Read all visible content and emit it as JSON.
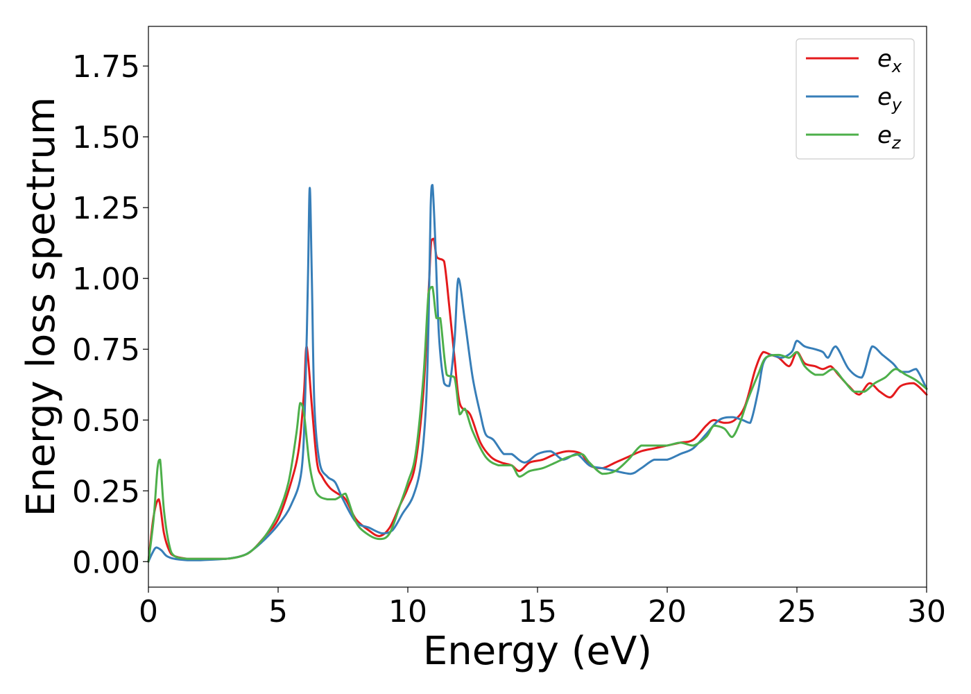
{
  "chart_data": {
    "type": "line",
    "title": "",
    "xlabel": "Energy (eV)",
    "ylabel": "Energy loss spectrum",
    "xlim": [
      0,
      30
    ],
    "ylim": [
      -0.09,
      1.89
    ],
    "xticks": [
      0,
      5,
      10,
      15,
      20,
      25,
      30
    ],
    "xtick_labels": [
      "0",
      "5",
      "10",
      "15",
      "20",
      "25",
      "30"
    ],
    "yticks": [
      0.0,
      0.25,
      0.5,
      0.75,
      1.0,
      1.25,
      1.5,
      1.75
    ],
    "ytick_labels": [
      "0.00",
      "0.25",
      "0.50",
      "0.75",
      "1.00",
      "1.25",
      "1.50",
      "1.75"
    ],
    "grid": false,
    "legend_position": "top-right",
    "series": [
      {
        "name": "e_x",
        "legend_base": "e",
        "legend_sub": "x",
        "color": "#e41a1c",
        "x": [
          0,
          0.2,
          0.4,
          0.6,
          0.8,
          1.0,
          1.5,
          2.0,
          3.0,
          3.6,
          4.0,
          4.5,
          5.0,
          5.5,
          5.8,
          6.0,
          6.1,
          6.3,
          6.5,
          6.7,
          7.0,
          7.3,
          7.6,
          8.0,
          8.5,
          8.9,
          9.3,
          9.7,
          10.0,
          10.3,
          10.6,
          10.8,
          10.9,
          11.0,
          11.1,
          11.2,
          11.4,
          11.6,
          11.8,
          12.0,
          12.4,
          12.8,
          13.2,
          13.6,
          14.0,
          14.3,
          14.7,
          15.2,
          15.7,
          16.2,
          16.7,
          17.0,
          17.5,
          18.0,
          18.5,
          19.0,
          19.5,
          20.0,
          20.5,
          21.0,
          21.5,
          21.8,
          22.2,
          22.6,
          23.0,
          23.4,
          23.7,
          24.0,
          24.3,
          24.7,
          25.0,
          25.3,
          25.7,
          26.0,
          26.3,
          26.6,
          27.0,
          27.4,
          27.8,
          28.2,
          28.6,
          29.0,
          29.5,
          30.0
        ],
        "y": [
          0.0,
          0.16,
          0.22,
          0.1,
          0.04,
          0.02,
          0.01,
          0.01,
          0.01,
          0.02,
          0.04,
          0.09,
          0.15,
          0.28,
          0.4,
          0.6,
          0.76,
          0.55,
          0.35,
          0.3,
          0.26,
          0.24,
          0.22,
          0.15,
          0.11,
          0.09,
          0.12,
          0.2,
          0.26,
          0.35,
          0.6,
          0.95,
          1.13,
          1.14,
          1.08,
          1.07,
          1.06,
          0.9,
          0.72,
          0.56,
          0.52,
          0.42,
          0.37,
          0.35,
          0.34,
          0.32,
          0.35,
          0.36,
          0.38,
          0.39,
          0.38,
          0.34,
          0.33,
          0.35,
          0.37,
          0.39,
          0.4,
          0.41,
          0.42,
          0.43,
          0.48,
          0.5,
          0.49,
          0.5,
          0.55,
          0.68,
          0.74,
          0.73,
          0.72,
          0.69,
          0.74,
          0.7,
          0.69,
          0.68,
          0.69,
          0.66,
          0.62,
          0.59,
          0.63,
          0.6,
          0.58,
          0.62,
          0.63,
          0.59
        ]
      },
      {
        "name": "e_y",
        "legend_base": "e",
        "legend_sub": "y",
        "color": "#377eb8",
        "x": [
          0,
          0.15,
          0.3,
          0.5,
          0.7,
          1.0,
          1.5,
          2.0,
          3.0,
          3.6,
          4.0,
          4.5,
          5.0,
          5.5,
          5.9,
          6.05,
          6.15,
          6.22,
          6.3,
          6.4,
          6.6,
          6.9,
          7.2,
          7.5,
          8.0,
          8.5,
          9.0,
          9.4,
          9.8,
          10.2,
          10.5,
          10.7,
          10.8,
          10.88,
          10.95,
          11.05,
          11.2,
          11.4,
          11.6,
          11.8,
          11.95,
          12.2,
          12.5,
          12.8,
          13.0,
          13.3,
          13.7,
          14.0,
          14.5,
          15.0,
          15.5,
          16.0,
          16.5,
          17.0,
          17.5,
          18.0,
          18.6,
          19.0,
          19.5,
          20.0,
          20.5,
          21.0,
          21.5,
          22.0,
          22.5,
          22.9,
          23.2,
          23.5,
          23.7,
          24.0,
          24.4,
          24.8,
          25.0,
          25.3,
          25.7,
          26.0,
          26.2,
          26.5,
          27.0,
          27.5,
          27.9,
          28.3,
          28.7,
          29.0,
          29.3,
          29.6,
          30.0
        ],
        "y": [
          0.0,
          0.03,
          0.05,
          0.04,
          0.02,
          0.01,
          0.005,
          0.005,
          0.01,
          0.02,
          0.04,
          0.08,
          0.13,
          0.2,
          0.32,
          0.6,
          1.0,
          1.32,
          1.0,
          0.55,
          0.35,
          0.3,
          0.28,
          0.22,
          0.14,
          0.12,
          0.1,
          0.11,
          0.17,
          0.23,
          0.34,
          0.55,
          0.85,
          1.25,
          1.33,
          1.15,
          0.8,
          0.63,
          0.62,
          0.78,
          1.0,
          0.85,
          0.65,
          0.52,
          0.45,
          0.43,
          0.38,
          0.38,
          0.35,
          0.38,
          0.39,
          0.36,
          0.38,
          0.34,
          0.33,
          0.32,
          0.31,
          0.33,
          0.36,
          0.36,
          0.38,
          0.4,
          0.45,
          0.5,
          0.51,
          0.5,
          0.49,
          0.6,
          0.7,
          0.73,
          0.72,
          0.74,
          0.78,
          0.76,
          0.75,
          0.74,
          0.72,
          0.76,
          0.68,
          0.65,
          0.76,
          0.73,
          0.7,
          0.67,
          0.67,
          0.68,
          0.61
        ]
      },
      {
        "name": "e_z",
        "legend_base": "e",
        "legend_sub": "z",
        "color": "#4daf4a",
        "x": [
          0,
          0.2,
          0.35,
          0.45,
          0.6,
          0.8,
          1.0,
          1.5,
          2.0,
          3.0,
          3.6,
          4.0,
          4.5,
          5.0,
          5.4,
          5.7,
          5.85,
          6.0,
          6.2,
          6.4,
          6.6,
          6.9,
          7.2,
          7.4,
          7.6,
          8.0,
          8.4,
          8.9,
          9.3,
          9.7,
          10.0,
          10.3,
          10.6,
          10.8,
          10.95,
          11.1,
          11.25,
          11.5,
          11.8,
          12.0,
          12.2,
          12.5,
          13.0,
          13.5,
          14.0,
          14.3,
          14.7,
          15.2,
          15.7,
          16.2,
          16.7,
          17.0,
          17.5,
          18.0,
          18.5,
          19.0,
          19.5,
          20.0,
          20.5,
          21.0,
          21.5,
          21.8,
          22.2,
          22.5,
          22.8,
          23.1,
          23.5,
          23.8,
          24.3,
          24.7,
          25.0,
          25.3,
          25.7,
          26.0,
          26.4,
          26.8,
          27.2,
          27.6,
          28.0,
          28.4,
          28.8,
          29.2,
          29.6,
          30.0
        ],
        "y": [
          0.0,
          0.15,
          0.33,
          0.36,
          0.18,
          0.06,
          0.02,
          0.01,
          0.01,
          0.01,
          0.02,
          0.04,
          0.09,
          0.17,
          0.28,
          0.45,
          0.56,
          0.52,
          0.35,
          0.26,
          0.23,
          0.22,
          0.22,
          0.23,
          0.24,
          0.14,
          0.1,
          0.08,
          0.1,
          0.2,
          0.28,
          0.38,
          0.65,
          0.95,
          0.97,
          0.86,
          0.86,
          0.66,
          0.65,
          0.52,
          0.54,
          0.46,
          0.37,
          0.34,
          0.34,
          0.3,
          0.32,
          0.33,
          0.35,
          0.37,
          0.38,
          0.35,
          0.31,
          0.32,
          0.36,
          0.41,
          0.41,
          0.41,
          0.42,
          0.41,
          0.44,
          0.48,
          0.47,
          0.44,
          0.49,
          0.57,
          0.66,
          0.72,
          0.73,
          0.72,
          0.74,
          0.69,
          0.66,
          0.66,
          0.68,
          0.64,
          0.6,
          0.6,
          0.63,
          0.65,
          0.68,
          0.66,
          0.64,
          0.61
        ]
      }
    ]
  }
}
